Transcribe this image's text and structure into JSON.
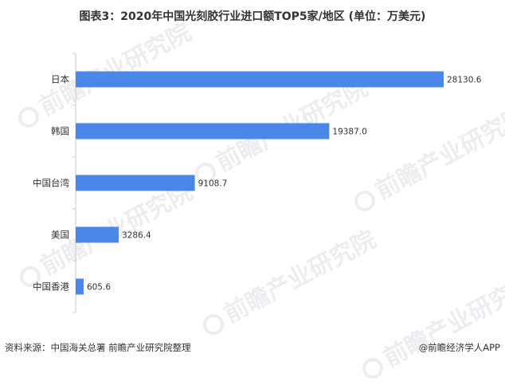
{
  "title": "图表3：2020年中国光刻胶行业进口额TOP5家/地区 (单位：万美元)",
  "footer": {
    "source": "资料来源：中国海关总署 前瞻产业研究院整理",
    "brand": "@前瞻经济学人APP"
  },
  "watermark": {
    "text": "前瞻产业研究院"
  },
  "colors": {
    "bar": "#4a87e8",
    "text": "#333333",
    "axis": "#c8c8c8"
  },
  "chart_data": {
    "type": "bar",
    "orientation": "horizontal",
    "title": "图表3：2020年中国光刻胶行业进口额TOP5家/地区 (单位：万美元)",
    "categories": [
      "日本",
      "韩国",
      "中国台湾",
      "美国",
      "中国香港"
    ],
    "values": [
      28130.6,
      19387.0,
      9108.7,
      3286.4,
      605.6
    ],
    "value_labels": [
      "28130.6",
      "19387.0",
      "9108.7",
      "3286.4",
      "605.6"
    ],
    "xlim": [
      0,
      28130.6
    ],
    "grid": false,
    "legend": "none"
  }
}
